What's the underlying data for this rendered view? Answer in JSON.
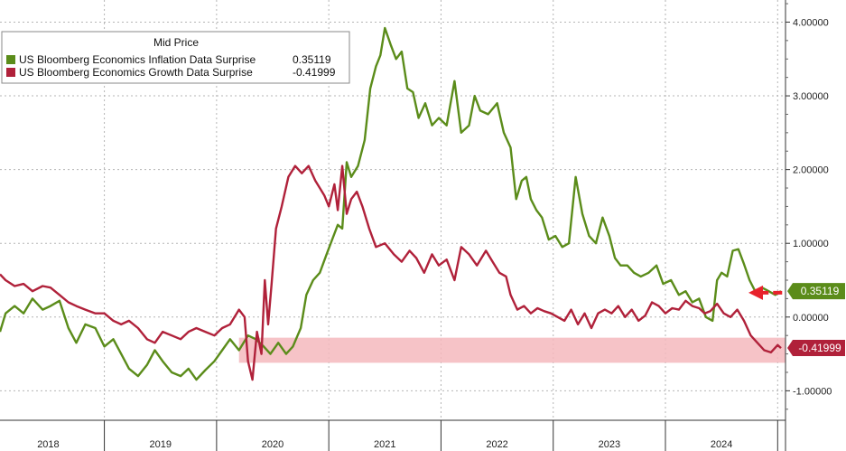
{
  "chart_data": {
    "type": "line",
    "legend": {
      "title": "Mid Price",
      "placement": "top-left",
      "entries": [
        {
          "name": "US Bloomberg Economics Inflation Data Surprise",
          "value": "0.35119",
          "color": "#5b8c1a"
        },
        {
          "name": "US Bloomberg Economics Growth Data Surprise",
          "value": "-0.41999",
          "color": "#b0213a"
        }
      ]
    },
    "x_tick_labels": [
      "2018",
      "2019",
      "2020",
      "2021",
      "2022",
      "2023",
      "2024"
    ],
    "x_ticks": [
      2018,
      2019,
      2020,
      2021,
      2022,
      2023,
      2024
    ],
    "xlim": [
      2017.57,
      2024.57
    ],
    "y_tick_labels": [
      "4.00000",
      "3.00000",
      "2.00000",
      "1.00000",
      "0.00000",
      "-1.00000"
    ],
    "y_ticks": [
      4,
      3,
      2,
      1,
      0,
      -1
    ],
    "ylim": [
      -1.4,
      4.3
    ],
    "grid": true,
    "y_axis_position": "right",
    "highlight_band": {
      "x_start": 2019.7,
      "x_end": 2024.57,
      "y_start": -0.28,
      "y_end": -0.62,
      "color": "#f5b8bd"
    },
    "arrow": {
      "from_x": 2024.54,
      "to_x": 2024.24,
      "y": 0.33,
      "color": "#e8222c"
    },
    "last_value_badges": [
      {
        "label": "0.35119",
        "value": 0.35119,
        "color": "#5b8c1a"
      },
      {
        "label": "-0.41999",
        "value": -0.41999,
        "color": "#b0213a"
      }
    ],
    "series": [
      {
        "name": "US Bloomberg Economics Inflation Data Surprise",
        "color": "#5b8c1a",
        "x": [
          2017.57,
          2017.62,
          2017.7,
          2017.78,
          2017.86,
          2017.95,
          2018.02,
          2018.1,
          2018.18,
          2018.25,
          2018.33,
          2018.42,
          2018.5,
          2018.58,
          2018.65,
          2018.72,
          2018.8,
          2018.88,
          2018.95,
          2019.02,
          2019.1,
          2019.18,
          2019.25,
          2019.32,
          2019.4,
          2019.48,
          2019.55,
          2019.62,
          2019.7,
          2019.78,
          2019.85,
          2019.92,
          2019.98,
          2020.05,
          2020.12,
          2020.18,
          2020.25,
          2020.3,
          2020.36,
          2020.42,
          2020.48,
          2020.53,
          2020.58,
          2020.62,
          2020.66,
          2020.7,
          2020.76,
          2020.82,
          2020.87,
          2020.92,
          2020.96,
          2021.0,
          2021.05,
          2021.1,
          2021.15,
          2021.2,
          2021.25,
          2021.3,
          2021.36,
          2021.42,
          2021.48,
          2021.55,
          2021.62,
          2021.68,
          2021.75,
          2021.8,
          2021.85,
          2021.92,
          2022.0,
          2022.06,
          2022.12,
          2022.17,
          2022.22,
          2022.26,
          2022.3,
          2022.35,
          2022.4,
          2022.46,
          2022.52,
          2022.58,
          2022.64,
          2022.7,
          2022.76,
          2022.82,
          2022.88,
          2022.94,
          2023.0,
          2023.05,
          2023.1,
          2023.16,
          2023.22,
          2023.28,
          2023.35,
          2023.42,
          2023.48,
          2023.55,
          2023.62,
          2023.68,
          2023.74,
          2023.8,
          2023.86,
          2023.92,
          2023.96,
          2024.0,
          2024.05,
          2024.1,
          2024.15,
          2024.2,
          2024.25,
          2024.3,
          2024.36,
          2024.42,
          2024.48,
          2024.53
        ],
        "y": [
          -0.2,
          0.05,
          0.15,
          0.05,
          0.25,
          0.1,
          0.15,
          0.22,
          -0.15,
          -0.35,
          -0.1,
          -0.15,
          -0.4,
          -0.3,
          -0.5,
          -0.7,
          -0.8,
          -0.65,
          -0.45,
          -0.6,
          -0.75,
          -0.8,
          -0.7,
          -0.85,
          -0.72,
          -0.6,
          -0.45,
          -0.3,
          -0.45,
          -0.25,
          -0.3,
          -0.4,
          -0.5,
          -0.35,
          -0.5,
          -0.4,
          -0.15,
          0.3,
          0.5,
          0.6,
          0.85,
          1.05,
          1.25,
          1.2,
          2.1,
          1.9,
          2.05,
          2.4,
          3.1,
          3.4,
          3.55,
          3.92,
          3.7,
          3.5,
          3.6,
          3.1,
          3.05,
          2.7,
          2.9,
          2.6,
          2.7,
          2.6,
          3.2,
          2.5,
          2.6,
          3.0,
          2.8,
          2.75,
          2.9,
          2.5,
          2.3,
          1.6,
          1.85,
          1.9,
          1.6,
          1.45,
          1.35,
          1.05,
          1.1,
          0.95,
          1.0,
          1.9,
          1.4,
          1.1,
          1.0,
          1.35,
          1.1,
          0.8,
          0.7,
          0.7,
          0.6,
          0.55,
          0.6,
          0.7,
          0.45,
          0.5,
          0.3,
          0.35,
          0.2,
          0.25,
          0.0,
          -0.05,
          0.5,
          0.6,
          0.55,
          0.9,
          0.92,
          0.72,
          0.5,
          0.35,
          0.4,
          0.35,
          0.3,
          0.35119
        ]
      },
      {
        "name": "US Bloomberg Economics Growth Data Surprise",
        "color": "#b0213a",
        "x": [
          2017.57,
          2017.62,
          2017.7,
          2017.78,
          2017.86,
          2017.95,
          2018.02,
          2018.1,
          2018.18,
          2018.25,
          2018.33,
          2018.42,
          2018.5,
          2018.58,
          2018.65,
          2018.72,
          2018.8,
          2018.88,
          2018.95,
          2019.02,
          2019.1,
          2019.18,
          2019.25,
          2019.32,
          2019.4,
          2019.48,
          2019.55,
          2019.62,
          2019.7,
          2019.75,
          2019.78,
          2019.82,
          2019.86,
          2019.9,
          2019.93,
          2019.96,
          2019.99,
          2020.03,
          2020.08,
          2020.14,
          2020.2,
          2020.26,
          2020.32,
          2020.38,
          2020.42,
          2020.46,
          2020.5,
          2020.55,
          2020.58,
          2020.62,
          2020.66,
          2020.7,
          2020.75,
          2020.8,
          2020.86,
          2020.92,
          2021.0,
          2021.08,
          2021.15,
          2021.22,
          2021.28,
          2021.35,
          2021.42,
          2021.48,
          2021.55,
          2021.62,
          2021.68,
          2021.75,
          2021.82,
          2021.9,
          2021.96,
          2022.02,
          2022.08,
          2022.12,
          2022.18,
          2022.24,
          2022.3,
          2022.36,
          2022.42,
          2022.48,
          2022.54,
          2022.6,
          2022.66,
          2022.72,
          2022.78,
          2022.84,
          2022.9,
          2022.96,
          2023.02,
          2023.08,
          2023.14,
          2023.2,
          2023.26,
          2023.32,
          2023.38,
          2023.44,
          2023.5,
          2023.56,
          2023.62,
          2023.68,
          2023.74,
          2023.8,
          2023.85,
          2023.9,
          2023.96,
          2024.02,
          2024.08,
          2024.14,
          2024.2,
          2024.26,
          2024.32,
          2024.38,
          2024.44,
          2024.5,
          2024.53
        ],
        "y": [
          0.58,
          0.5,
          0.42,
          0.45,
          0.35,
          0.42,
          0.4,
          0.3,
          0.2,
          0.15,
          0.1,
          0.05,
          0.05,
          -0.05,
          -0.1,
          -0.05,
          -0.15,
          -0.3,
          -0.35,
          -0.2,
          -0.25,
          -0.3,
          -0.2,
          -0.15,
          -0.2,
          -0.25,
          -0.15,
          -0.1,
          0.1,
          0.0,
          -0.6,
          -0.85,
          -0.2,
          -0.5,
          0.5,
          -0.1,
          0.45,
          1.2,
          1.5,
          1.9,
          2.05,
          1.95,
          2.05,
          1.85,
          1.75,
          1.65,
          1.5,
          1.8,
          1.45,
          2.05,
          1.4,
          1.6,
          1.7,
          1.5,
          1.2,
          0.95,
          1.0,
          0.85,
          0.75,
          0.9,
          0.8,
          0.6,
          0.85,
          0.7,
          0.78,
          0.5,
          0.95,
          0.85,
          0.7,
          0.9,
          0.75,
          0.6,
          0.55,
          0.3,
          0.1,
          0.15,
          0.05,
          0.12,
          0.08,
          0.05,
          0.0,
          -0.05,
          0.1,
          -0.1,
          0.05,
          -0.15,
          0.05,
          0.1,
          0.05,
          0.15,
          0.0,
          0.1,
          -0.05,
          0.02,
          0.2,
          0.15,
          0.05,
          0.12,
          0.1,
          0.22,
          0.15,
          0.12,
          0.05,
          0.08,
          0.18,
          0.05,
          0.0,
          0.1,
          -0.05,
          -0.25,
          -0.35,
          -0.45,
          -0.48,
          -0.38,
          -0.41999
        ]
      }
    ]
  }
}
